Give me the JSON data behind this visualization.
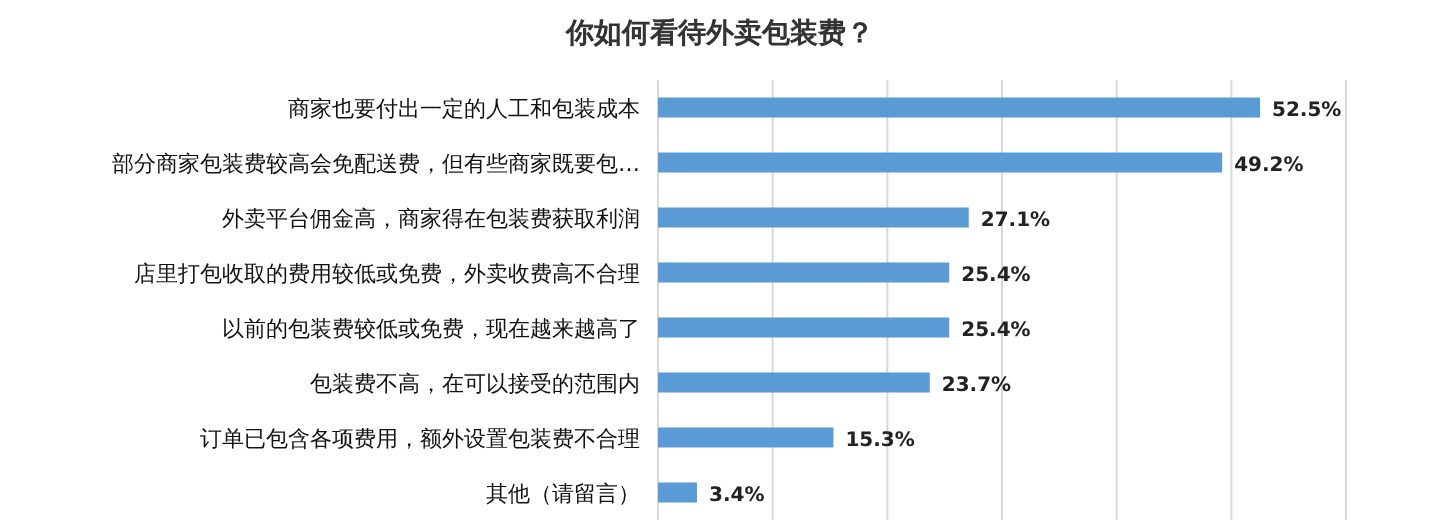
{
  "chart_data": {
    "type": "bar",
    "orientation": "horizontal",
    "title": "你如何看待外卖包装费？",
    "categories": [
      "商家也要付出一定的人工和包装成本",
      "部分商家包装费较高会免配送费，但有些商家既要包…",
      "外卖平台佣金高，商家得在包装费获取利润",
      "店里打包收取的费用较低或免费，外卖收费高不合理",
      "以前的包装费较低或免费，现在越来越高了",
      "包装费不高，在可以接受的范围内",
      "订单已包含各项费用，额外设置包装费不合理",
      "其他（请留言）"
    ],
    "values": [
      52.5,
      49.2,
      27.1,
      25.4,
      25.4,
      23.7,
      15.3,
      3.4
    ],
    "value_labels": [
      "52.5%",
      "49.2%",
      "27.1%",
      "25.4%",
      "25.4%",
      "23.7%",
      "15.3%",
      "3.4%"
    ],
    "color": "#5b9bd5",
    "xlim": [
      0,
      60
    ],
    "xticks": [
      {
        "value": 0,
        "label": null
      },
      {
        "value": 10,
        "label": null
      },
      {
        "value": 20,
        "label": null
      },
      {
        "value": 30,
        "label": null
      },
      {
        "value": 40,
        "label": null
      },
      {
        "value": 50,
        "label": null
      },
      {
        "value": 60,
        "label": null
      }
    ],
    "tick_labels": "y",
    "grid": "x"
  }
}
